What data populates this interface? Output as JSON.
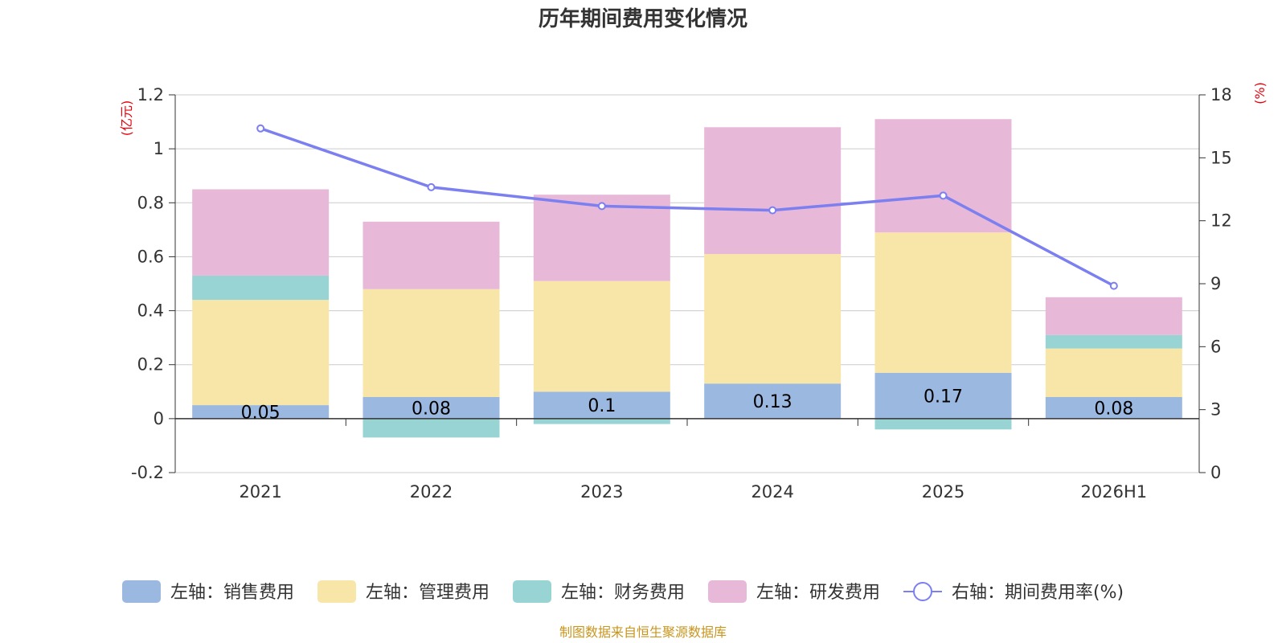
{
  "chart_data": {
    "type": "bar",
    "title": "历年期间费用变化情况",
    "categories": [
      "2021",
      "2022",
      "2023",
      "2024",
      "2025",
      "2026H1"
    ],
    "left_axis": {
      "unit": "(亿元)",
      "ylim": [
        -0.2,
        1.2
      ],
      "ticks": [
        "-0.2",
        "0",
        "0.2",
        "0.4",
        "0.6",
        "0.8",
        "1",
        "1.2"
      ]
    },
    "right_axis": {
      "unit": "(%)",
      "ylim": [
        0,
        18
      ],
      "ticks": [
        "0",
        "3",
        "6",
        "9",
        "12",
        "15",
        "18"
      ]
    },
    "series": [
      {
        "name": "左轴：销售费用",
        "type": "bar",
        "color": "#9bb8e1",
        "values": [
          0.05,
          0.08,
          0.1,
          0.13,
          0.17,
          0.08
        ],
        "labels": [
          "0.05",
          "0.08",
          "0.1",
          "0.13",
          "0.17",
          "0.08"
        ]
      },
      {
        "name": "左轴：管理费用",
        "type": "bar",
        "color": "#f8e6a8",
        "values": [
          0.39,
          0.4,
          0.41,
          0.48,
          0.52,
          0.18
        ]
      },
      {
        "name": "左轴：财务费用",
        "type": "bar",
        "color": "#98d4d4",
        "values": [
          0.09,
          -0.07,
          -0.02,
          0.0,
          -0.04,
          0.05
        ]
      },
      {
        "name": "左轴：研发费用",
        "type": "bar",
        "color": "#e7b8d8",
        "values": [
          0.32,
          0.25,
          0.32,
          0.47,
          0.42,
          0.14
        ]
      },
      {
        "name": "右轴：期间费用率(%)",
        "type": "line",
        "color": "#7b7ff0",
        "axis": "right",
        "values": [
          16.4,
          13.6,
          12.7,
          12.5,
          13.2,
          8.9
        ]
      }
    ],
    "grid": true,
    "legend": "bottom"
  },
  "source": "制图数据来自恒生聚源数据库"
}
